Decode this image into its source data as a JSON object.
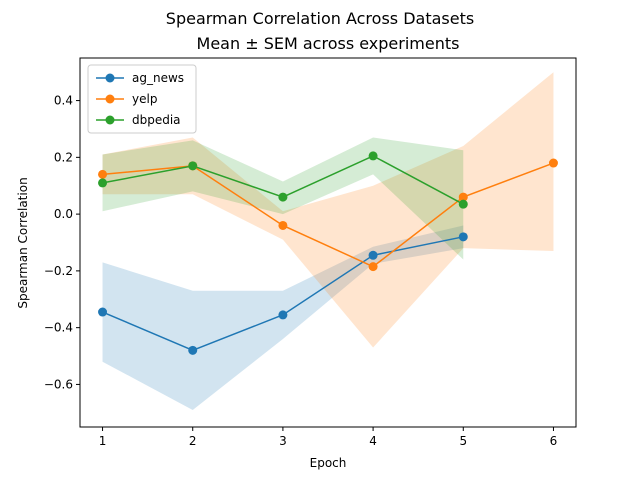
{
  "chart_data": {
    "type": "line",
    "title": "Spearman Correlation Across Datasets",
    "subtitle": "Mean ± SEM across experiments",
    "xlabel": "Epoch",
    "ylabel": "Spearman Correlation",
    "xlim": [
      0.75,
      6.25
    ],
    "ylim": [
      -0.75,
      0.55
    ],
    "x_ticks": [
      1,
      2,
      3,
      4,
      5,
      6
    ],
    "y_ticks": [
      -0.6,
      -0.4,
      -0.2,
      0.0,
      0.2,
      0.4
    ],
    "y_tick_labels": [
      "−0.6",
      "−0.4",
      "−0.2",
      "0.0",
      "0.2",
      "0.4"
    ],
    "grid": false,
    "legend_position": "top-left",
    "series": [
      {
        "name": "ag_news",
        "color": "#1f77b4",
        "x": [
          1,
          2,
          3,
          4,
          5
        ],
        "values": [
          -0.345,
          -0.48,
          -0.355,
          -0.145,
          -0.08
        ],
        "lower": [
          -0.52,
          -0.69,
          -0.44,
          -0.175,
          -0.12
        ],
        "upper": [
          -0.17,
          -0.27,
          -0.27,
          -0.115,
          -0.04
        ]
      },
      {
        "name": "yelp",
        "color": "#ff7f0e",
        "x": [
          1,
          2,
          3,
          4,
          5,
          6
        ],
        "values": [
          0.14,
          0.17,
          -0.04,
          -0.185,
          0.06,
          0.18
        ],
        "lower": [
          0.07,
          0.07,
          -0.09,
          -0.47,
          -0.12,
          -0.13
        ],
        "upper": [
          0.21,
          0.27,
          0.01,
          0.1,
          0.24,
          0.5
        ]
      },
      {
        "name": "dbpedia",
        "color": "#2ca02c",
        "x": [
          1,
          2,
          3,
          4,
          5
        ],
        "values": [
          0.11,
          0.17,
          0.06,
          0.205,
          0.035
        ],
        "lower": [
          0.01,
          0.08,
          0.0,
          0.14,
          -0.16
        ],
        "upper": [
          0.21,
          0.26,
          0.115,
          0.27,
          0.225
        ]
      }
    ]
  }
}
